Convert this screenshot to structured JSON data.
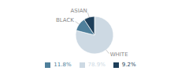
{
  "chart_data": {
    "type": "pie",
    "categories": [
      "WHITE",
      "BLACK",
      "ASIAN"
    ],
    "values": [
      78.9,
      11.8,
      9.2
    ],
    "value_labels": [
      "78.9%",
      "11.8%",
      "9.2%"
    ],
    "colors": [
      "#cdd9e3",
      "#4f7f9b",
      "#1e3f5a"
    ],
    "legend": "bottom"
  }
}
